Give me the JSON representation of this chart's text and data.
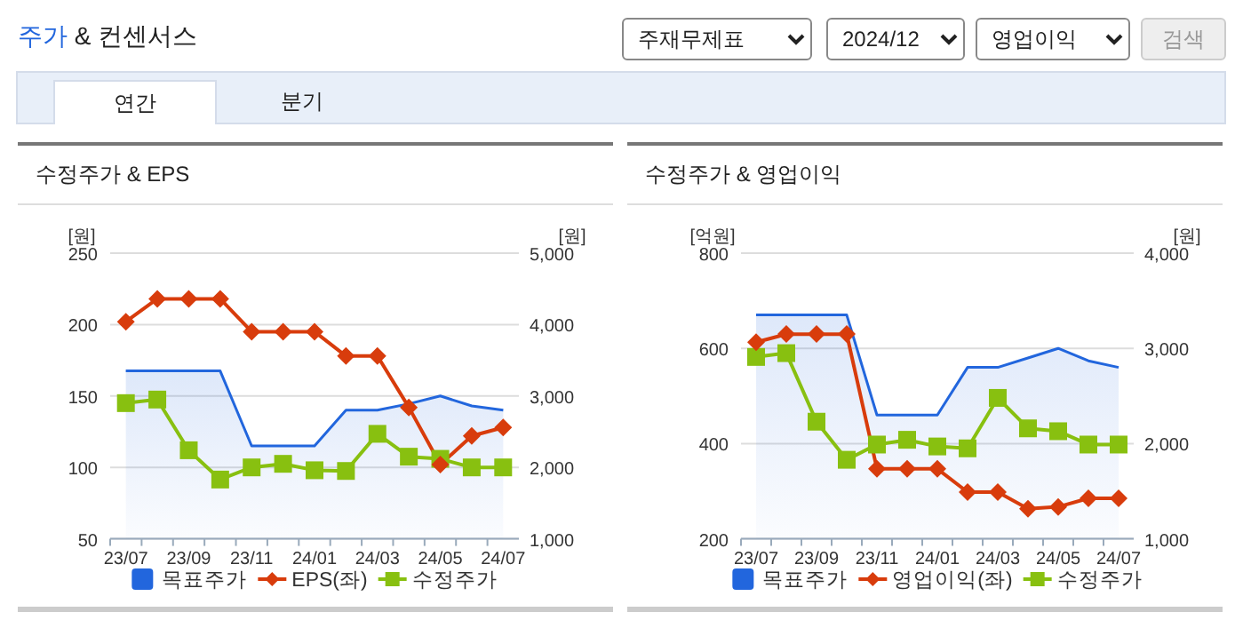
{
  "chart_data": [
    {
      "type": "other",
      "title": "주가 & 컨센서스",
      "annotations": [
        "주재무제표",
        "2024/12",
        "영업이익",
        "검색",
        "연간",
        "분기"
      ]
    },
    {
      "type": "line",
      "title": "수정주가 & EPS",
      "ylabel": "[원]",
      "y2label": "[원]",
      "categories": [
        "23/07",
        null,
        "23/09",
        null,
        "23/11",
        null,
        "24/01",
        null,
        "24/03",
        null,
        "24/05",
        null,
        "24/07"
      ],
      "series": [
        {
          "name": "목표주가",
          "type": "area",
          "axis": "y2",
          "color": "#2266dd",
          "marker": "none",
          "values": [
            3350,
            3350,
            3350,
            3350,
            2300,
            2300,
            2300,
            2800,
            2800,
            2890,
            3000,
            2860,
            2800
          ]
        },
        {
          "name": "EPS(좌)",
          "type": "line",
          "color": "#d83c0c",
          "marker": "diamond",
          "values": [
            202,
            218,
            218,
            218,
            195,
            195,
            195,
            178,
            178,
            142,
            102,
            122,
            128
          ]
        },
        {
          "name": "수정주가",
          "type": "line",
          "axis": "y2",
          "color": "#88c010",
          "marker": "square",
          "values": [
            2900,
            2950,
            2240,
            1830,
            2000,
            2050,
            1960,
            1950,
            2470,
            2150,
            2120,
            2000,
            2000
          ]
        }
      ],
      "ylim": [
        50,
        250
      ],
      "yticks": [
        50,
        100,
        150,
        200,
        250
      ],
      "y2lim": [
        1000,
        5000
      ],
      "y2ticks": [
        {
          "value": 1000,
          "label": "1,000"
        },
        {
          "value": 2000,
          "label": "2,000"
        },
        {
          "value": 3000,
          "label": "3,000"
        },
        {
          "value": 4000,
          "label": "4,000"
        },
        {
          "value": 5000,
          "label": "5,000"
        }
      ],
      "grid": "y",
      "legend": "bottom"
    },
    {
      "type": "line",
      "title": "수정주가 & 영업이익",
      "ylabel": "[억원]",
      "y2label": "[원]",
      "categories": [
        "23/07",
        null,
        "23/09",
        null,
        "23/11",
        null,
        "24/01",
        null,
        "24/03",
        null,
        "24/05",
        null,
        "24/07"
      ],
      "series": [
        {
          "name": "목표주가",
          "type": "area",
          "axis": "y2",
          "color": "#2266dd",
          "marker": "none",
          "values": [
            3350,
            3350,
            3350,
            3350,
            2300,
            2300,
            2300,
            2800,
            2800,
            2900,
            3000,
            2870,
            2800
          ]
        },
        {
          "name": "영업이익(좌)",
          "type": "line",
          "color": "#d83c0c",
          "marker": "diamond",
          "values": [
            613,
            630,
            630,
            630,
            347,
            347,
            347,
            298,
            298,
            263,
            267,
            285,
            285
          ]
        },
        {
          "name": "수정주가",
          "type": "line",
          "axis": "y2",
          "color": "#88c010",
          "marker": "square",
          "values": [
            2910,
            2950,
            2230,
            1830,
            1990,
            2040,
            1970,
            1950,
            2480,
            2160,
            2130,
            1990,
            1990
          ]
        }
      ],
      "ylim": [
        200,
        800
      ],
      "yticks": [
        200,
        400,
        600,
        800
      ],
      "y2lim": [
        1000,
        4000
      ],
      "y2ticks": [
        {
          "value": 1000,
          "label": "1,000"
        },
        {
          "value": 2000,
          "label": "2,000"
        },
        {
          "value": 3000,
          "label": "3,000"
        },
        {
          "value": 4000,
          "label": "4,000"
        }
      ],
      "grid": "y",
      "legend": "bottom"
    }
  ]
}
